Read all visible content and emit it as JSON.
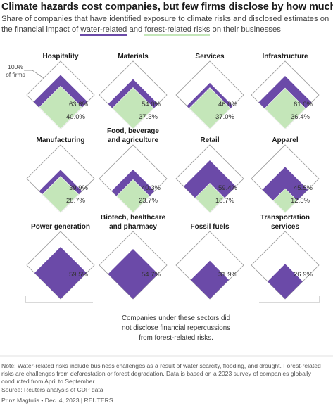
{
  "header": {
    "title": "Climate hazards cost companies, but few firms disclose by how much",
    "subtitle_pre": "Share of companies that have identified exposure to climate risks and disclosed estimates on the financial impact of ",
    "water_label": "water-related",
    "subtitle_mid": " and ",
    "forest_label": "forest-related risks",
    "subtitle_post": " on their businesses"
  },
  "reference_label": [
    "100%",
    "of firms"
  ],
  "colors": {
    "water": "#6b4aa8",
    "forest": "#c4e6b9",
    "outline": "#9a9a9a",
    "text": "#1a1a1a"
  },
  "chart_data": {
    "type": "diamond",
    "series": [
      {
        "name": "water-related"
      },
      {
        "name": "forest-related risks"
      }
    ],
    "categories": [
      {
        "name": [
          "Hospitality"
        ],
        "water": 63.6,
        "forest": 40.0,
        "water_label": "63.6%",
        "forest_label": "40.0%"
      },
      {
        "name": [
          "Materials"
        ],
        "water": 54.0,
        "forest": 37.3,
        "water_label": "54.0%",
        "forest_label": "37.3%"
      },
      {
        "name": [
          "Services"
        ],
        "water": 46.0,
        "forest": 37.0,
        "water_label": "46.0%",
        "forest_label": "37.0%"
      },
      {
        "name": [
          "Infrastructure"
        ],
        "water": 61.0,
        "forest": 36.4,
        "water_label": "61.0%",
        "forest_label": "36.4%"
      },
      {
        "name": [
          "Manufacturing"
        ],
        "water": 39.9,
        "forest": 28.7,
        "water_label": "39.9%",
        "forest_label": "28.7%"
      },
      {
        "name": [
          "Food, beverage",
          "and agriculture"
        ],
        "water": 40.3,
        "forest": 23.7,
        "water_label": "40.3%",
        "forest_label": "23.7%"
      },
      {
        "name": [
          "Retail"
        ],
        "water": 59.4,
        "forest": 18.7,
        "water_label": "59.4%",
        "forest_label": "18.7%"
      },
      {
        "name": [
          "Apparel"
        ],
        "water": 45.5,
        "forest": 12.5,
        "water_label": "45.5%",
        "forest_label": "12.5%"
      },
      {
        "name": [
          "Power generation"
        ],
        "water": 59.5,
        "forest": null,
        "water_label": "59.5%",
        "forest_label": ""
      },
      {
        "name": [
          "Biotech, healthcare",
          "and pharmacy"
        ],
        "water": 54.7,
        "forest": null,
        "water_label": "54.7%",
        "forest_label": ""
      },
      {
        "name": [
          "Fossil fuels"
        ],
        "water": 31.9,
        "forest": null,
        "water_label": "31.9%",
        "forest_label": ""
      },
      {
        "name": [
          "Transportation",
          "services"
        ],
        "water": 26.9,
        "forest": null,
        "water_label": "26.9%",
        "forest_label": ""
      }
    ]
  },
  "bracket_note": [
    "Companies under these sectors did",
    "not disclose financial repercussions",
    "from forest-related risks."
  ],
  "footer": {
    "note": "Note: Water-related risks include business challenges as a result of water scarcity, flooding, and drought. Forest-related risks are challenges from deforestation or forest degradation. Data is based on a 2023 survey of companies globally conducted from April to September.",
    "source": "Source: Reuters analysis of CDP data",
    "credit": "Prinz Magtulis • Dec. 4, 2023 | REUTERS"
  }
}
